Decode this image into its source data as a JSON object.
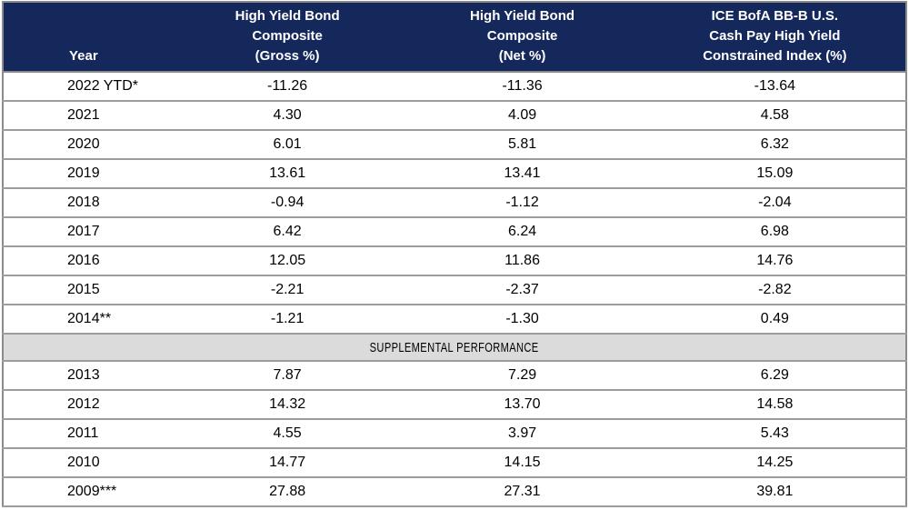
{
  "table": {
    "columns": [
      {
        "label": "Year"
      },
      {
        "label": "High Yield Bond\nComposite\n(Gross %)"
      },
      {
        "label": "High Yield Bond\nComposite\n(Net %)"
      },
      {
        "label": "ICE BofA BB-B U.S.\nCash Pay High Yield\nConstrained Index (%)"
      }
    ],
    "rows_main": [
      [
        "2022 YTD*",
        "-11.26",
        "-11.36",
        "-13.64"
      ],
      [
        "2021",
        "4.30",
        "4.09",
        "4.58"
      ],
      [
        "2020",
        "6.01",
        "5.81",
        "6.32"
      ],
      [
        "2019",
        "13.61",
        "13.41",
        "15.09"
      ],
      [
        "2018",
        "-0.94",
        "-1.12",
        "-2.04"
      ],
      [
        "2017",
        "6.42",
        "6.24",
        "6.98"
      ],
      [
        "2016",
        "12.05",
        "11.86",
        "14.76"
      ],
      [
        "2015",
        "-2.21",
        "-2.37",
        "-2.82"
      ],
      [
        "2014**",
        "-1.21",
        "-1.30",
        "0.49"
      ]
    ],
    "section_label": "SUPPLEMENTAL PERFORMANCE",
    "rows_supplemental": [
      [
        "2013",
        "7.87",
        "7.29",
        "6.29"
      ],
      [
        "2012",
        "14.32",
        "13.70",
        "14.58"
      ],
      [
        "2011",
        "4.55",
        "3.97",
        "5.43"
      ],
      [
        "2010",
        "14.77",
        "14.15",
        "14.25"
      ],
      [
        "2009***",
        "27.88",
        "27.31",
        "39.81"
      ]
    ],
    "colors": {
      "header_bg": "#14285C",
      "header_text": "#FFFFFF",
      "section_bg": "#DBDBDB",
      "border_outer": "#8A8A8A",
      "border_rows": "#9C9C9C",
      "body_text": "#000000"
    }
  },
  "chart_data": {
    "type": "table",
    "title": "High Yield Bond Composite Performance",
    "categories": [
      "2022 YTD*",
      "2021",
      "2020",
      "2019",
      "2018",
      "2017",
      "2016",
      "2015",
      "2014**",
      "2013",
      "2012",
      "2011",
      "2010",
      "2009***"
    ],
    "series": [
      {
        "name": "High Yield Bond Composite (Gross %)",
        "values": [
          -11.26,
          4.3,
          6.01,
          13.61,
          -0.94,
          6.42,
          12.05,
          -2.21,
          -1.21,
          7.87,
          14.32,
          4.55,
          14.77,
          27.88
        ]
      },
      {
        "name": "High Yield Bond Composite (Net %)",
        "values": [
          -11.36,
          4.09,
          5.81,
          13.41,
          -1.12,
          6.24,
          11.86,
          -2.37,
          -1.3,
          7.29,
          13.7,
          3.97,
          14.15,
          27.31
        ]
      },
      {
        "name": "ICE BofA BB-B U.S. Cash Pay High Yield Constrained Index (%)",
        "values": [
          -13.64,
          4.58,
          6.32,
          15.09,
          -2.04,
          6.98,
          14.76,
          -2.82,
          0.49,
          6.29,
          14.58,
          5.43,
          14.25,
          39.81
        ]
      }
    ],
    "sections": {
      "main_rows": 9,
      "supplemental_label": "SUPPLEMENTAL PERFORMANCE",
      "supplemental_rows": 5
    }
  }
}
